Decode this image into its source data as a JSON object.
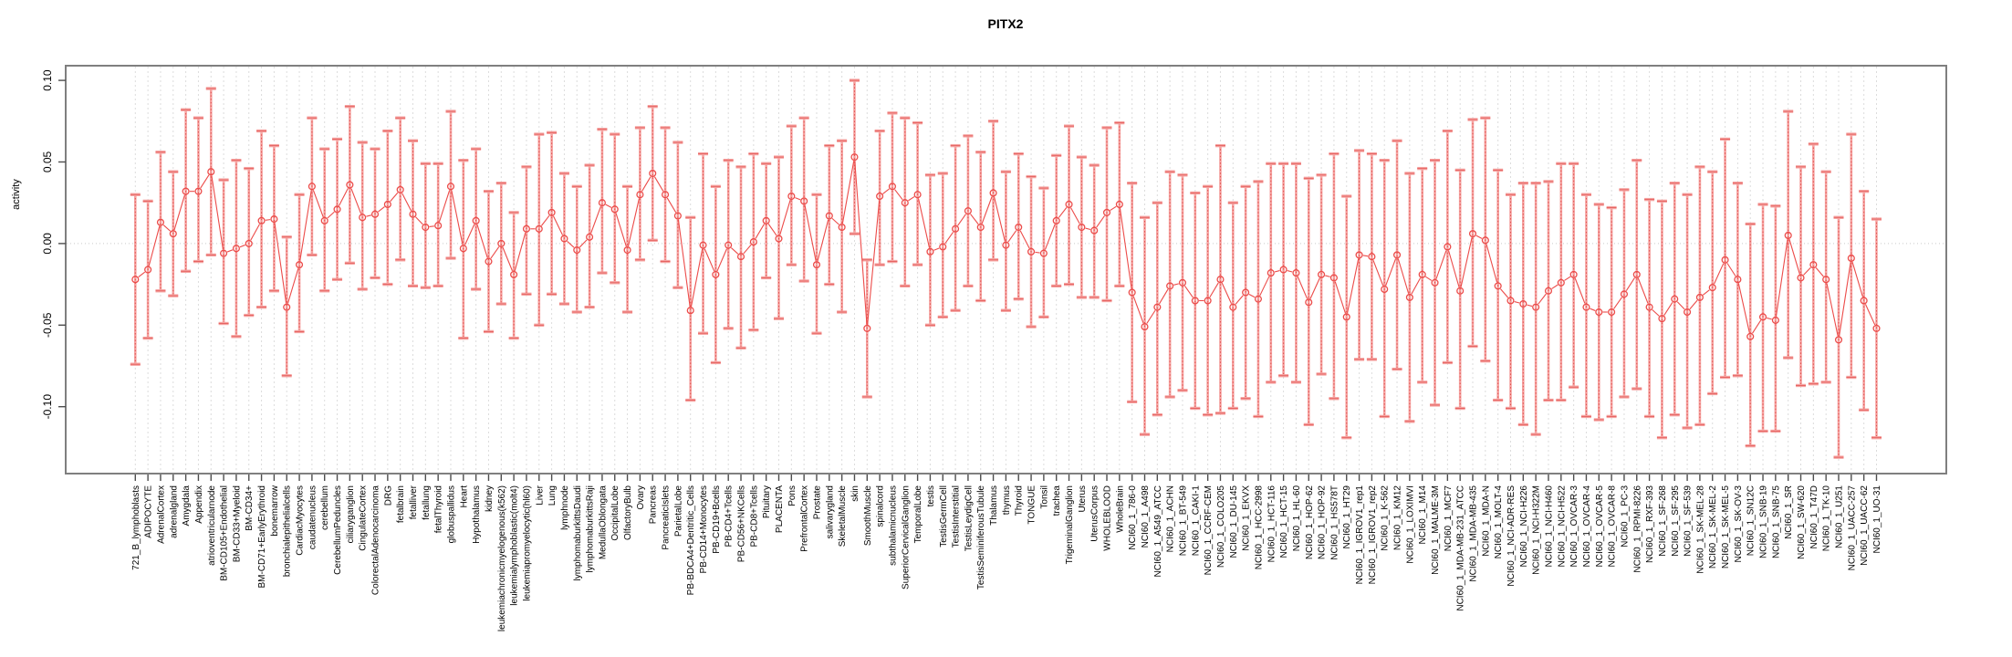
{
  "chart_data": {
    "type": "scatter",
    "subtype": "points-with-error-bars-and-connecting-line",
    "title": "PITX2",
    "xlabel": "",
    "ylabel": "activity",
    "ylim": [
      -0.141,
      0.109
    ],
    "ytick_values": [
      0.1,
      0.05,
      0.0,
      -0.05,
      -0.1
    ],
    "ytick_labels": [
      "0.10",
      "0.05",
      "0.00",
      "-0.05",
      "-0.10"
    ],
    "grid": "vertical dashed gridline per category; dotted horizontal line at 0",
    "legend_position": "none",
    "colors": {
      "point_line": "#EC4B49",
      "error_bar": "#F5A3A1",
      "error_bar_core": "#E2514F",
      "grid_line": "#DCDCDC",
      "zero_line": "#C9C9C9",
      "box": "#7F7F7F",
      "tick": "#4D4D4D"
    },
    "categories": [
      "721_B_lymphoblasts",
      "ADIPOCYTE",
      "AdrenalCortex",
      "adrenalgland",
      "Amygdala",
      "Appendix",
      "atrioventricularnode",
      "BM-CD105+Endothelial",
      "BM-CD33+Myeloid",
      "BM-CD34+",
      "BM-CD71+EarlyErythroid",
      "bonemarrow",
      "bronchialepithelialcells",
      "CardiacMyocytes",
      "caudatenucleus",
      "cerebellum",
      "CerebellumPeduncles",
      "ciliaryganglion",
      "CingulateCortex",
      "ColorectalAdenocarcinoma",
      "DRG",
      "fetalbrain",
      "fetalliver",
      "fetallung",
      "fetalThyroid",
      "globuspallidus",
      "Heart",
      "Hypothalamus",
      "kidney",
      "leukemiachronicmyelogenous(k562)",
      "leukemialymphoblastic(molt4)",
      "leukemiapromyelocytic(hl60)",
      "Liver",
      "Lung",
      "lymphnode",
      "lymphomaburkittsDaudi",
      "lymphomaburkittsRaji",
      "MedullaOblongata",
      "OccipitalLobe",
      "OlfactoryBulb",
      "Ovary",
      "Pancreas",
      "PancreaticIslets",
      "ParietalLobe",
      "PB-BDCA4+Dentritic_Cells",
      "PB-CD14+Monocytes",
      "PB-CD19+Bcells",
      "PB-CD4+Tcells",
      "PB-CD56+NKCells",
      "PB-CD8+Tcells",
      "Pituitary",
      "PLACENTA",
      "Pons",
      "PrefrontalCortex",
      "Prostate",
      "salivarygland",
      "SkeletalMuscle",
      "skin",
      "SmoothMuscle",
      "spinalcord",
      "subthalamicnucleus",
      "SuperiorCervicalGanglion",
      "TemporalLobe",
      "testis",
      "TestisGermCell",
      "TestisInterstitial",
      "TestisLeydigCell",
      "TestisSeminiferousTubule",
      "Thalamus",
      "thymus",
      "Thyroid",
      "TONGUE",
      "Tonsil",
      "trachea",
      "TrigeminalGanglion",
      "Uterus",
      "UterusCorpus",
      "WHOLEBLOOD",
      "WholeBrain",
      "NCI60_1_786-0",
      "NCI60_1_A498",
      "NCI60_1_A549_ATCC",
      "NCI60_1_ACHN",
      "NCI60_1_BT-549",
      "NCI60_1_CAKI-1",
      "NCI60_1_CCRF-CEM",
      "NCI60_1_COLO205",
      "NCI60_1_DU-145",
      "NCI60_1_EKVX",
      "NCI60_1_HCC-2998",
      "NCI60_1_HCT-116",
      "NCI60_1_HCT-15",
      "NCI60_1_HL-60",
      "NCI60_1_HOP-62",
      "NCI60_1_HOP-92",
      "NCI60_1_HS578T",
      "NCI60_1_HT29",
      "NCI60_1_IGROV1_rep1",
      "NCI60_1_IGROV1_rep2",
      "NCI60_1_K-562",
      "NCI60_1_KM12",
      "NCI60_1_LOXIMVI",
      "NCI60_1_M14",
      "NCI60_1_MALME-3M",
      "NCI60_1_MCF7",
      "NCI60_1_MDA-MB-231_ATCC",
      "NCI60_1_MDA-MB-435",
      "NCI60_1_MDA-N",
      "NCI60_1_MOLT-4",
      "NCI60_1_NCI-ADR-RES",
      "NCI60_1_NCI-H226",
      "NCI60_1_NCI-H322M",
      "NCI60_1_NCI-H460",
      "NCI60_1_NCI-H522",
      "NCI60_1_OVCAR-3",
      "NCI60_1_OVCAR-4",
      "NCI60_1_OVCAR-5",
      "NCI60_1_OVCAR-8",
      "NCI60_1_PC-3",
      "NCI60_1_RPMI-8226",
      "NCI60_1_RXF-393",
      "NCI60_1_SF-268",
      "NCI60_1_SF-295",
      "NCI60_1_SF-539",
      "NCI60_1_SK-MEL-28",
      "NCI60_1_SK-MEL-2",
      "NCI60_1_SK-MEL-5",
      "NCI60_1_SK-OV-3",
      "NCI60_1_SN12C",
      "NCI60_1_SNB-19",
      "NCI60_1_SNB-75",
      "NCI60_1_SR",
      "NCI60_1_SW-620",
      "NCI60_1_T47D",
      "NCI60_1_TK-10",
      "NCI60_1_U251",
      "NCI60_1_UACC-257",
      "NCI60_1_UACC-62",
      "NCI60_1_UO-31"
    ],
    "series": [
      {
        "name": "activity",
        "mid": [
          -0.022,
          -0.016,
          0.013,
          0.006,
          0.032,
          0.032,
          0.044,
          -0.006,
          -0.003,
          0.0,
          0.014,
          0.015,
          -0.039,
          -0.013,
          0.035,
          0.014,
          0.021,
          0.036,
          0.016,
          0.018,
          0.024,
          0.033,
          0.018,
          0.01,
          0.011,
          0.035,
          -0.003,
          0.014,
          -0.011,
          0.0,
          -0.019,
          0.009,
          0.009,
          0.019,
          0.003,
          -0.004,
          0.004,
          0.025,
          0.021,
          -0.004,
          0.03,
          0.043,
          0.03,
          0.017,
          -0.041,
          -0.001,
          -0.019,
          -0.001,
          -0.008,
          0.001,
          0.014,
          0.003,
          0.029,
          0.026,
          -0.013,
          0.017,
          0.01,
          0.053,
          -0.052,
          0.029,
          0.035,
          0.025,
          0.03,
          -0.005,
          -0.002,
          0.009,
          0.02,
          0.01,
          0.031,
          -0.001,
          0.01,
          -0.005,
          -0.006,
          0.014,
          0.024,
          0.01,
          0.008,
          0.019,
          0.024,
          -0.03,
          -0.051,
          -0.039,
          -0.026,
          -0.024,
          -0.035,
          -0.035,
          -0.022,
          -0.039,
          -0.03,
          -0.034,
          -0.018,
          -0.016,
          -0.018,
          -0.036,
          -0.019,
          -0.021,
          -0.045,
          -0.007,
          -0.008,
          -0.028,
          -0.007,
          -0.033,
          -0.019,
          -0.024,
          -0.002,
          -0.029,
          0.006,
          0.002,
          -0.026,
          -0.035,
          -0.037,
          -0.039,
          -0.029,
          -0.024,
          -0.019,
          -0.039,
          -0.042,
          -0.042,
          -0.031,
          -0.019,
          -0.039,
          -0.046,
          -0.034,
          -0.042,
          -0.033,
          -0.027,
          -0.01,
          -0.022,
          -0.057,
          -0.045,
          -0.047,
          0.005,
          -0.021,
          -0.013,
          -0.022,
          -0.059,
          -0.009,
          -0.035,
          -0.052
        ],
        "upper": [
          0.03,
          0.026,
          0.056,
          0.044,
          0.082,
          0.077,
          0.095,
          0.039,
          0.051,
          0.046,
          0.069,
          0.06,
          0.004,
          0.03,
          0.077,
          0.058,
          0.064,
          0.084,
          0.062,
          0.058,
          0.069,
          0.077,
          0.063,
          0.049,
          0.049,
          0.081,
          0.051,
          0.058,
          0.032,
          0.037,
          0.019,
          0.047,
          0.067,
          0.068,
          0.043,
          0.035,
          0.048,
          0.07,
          0.067,
          0.035,
          0.071,
          0.084,
          0.071,
          0.062,
          0.016,
          0.055,
          0.035,
          0.051,
          0.047,
          0.055,
          0.049,
          0.053,
          0.072,
          0.077,
          0.03,
          0.06,
          0.063,
          0.1,
          -0.01,
          0.069,
          0.08,
          0.077,
          0.074,
          0.042,
          0.043,
          0.06,
          0.066,
          0.056,
          0.075,
          0.044,
          0.055,
          0.041,
          0.034,
          0.054,
          0.072,
          0.053,
          0.048,
          0.071,
          0.074,
          0.037,
          0.016,
          0.025,
          0.044,
          0.042,
          0.031,
          0.035,
          0.06,
          0.025,
          0.035,
          0.038,
          0.049,
          0.049,
          0.049,
          0.04,
          0.042,
          0.055,
          0.029,
          0.057,
          0.055,
          0.051,
          0.063,
          0.043,
          0.046,
          0.051,
          0.069,
          0.045,
          0.076,
          0.077,
          0.045,
          0.03,
          0.037,
          0.037,
          0.038,
          0.049,
          0.049,
          0.03,
          0.024,
          0.022,
          0.033,
          0.051,
          0.027,
          0.026,
          0.037,
          0.03,
          0.047,
          0.044,
          0.064,
          0.037,
          0.012,
          0.024,
          0.023,
          0.081,
          0.047,
          0.061,
          0.044,
          0.016,
          0.067,
          0.032,
          0.015
        ],
        "lower": [
          -0.074,
          -0.058,
          -0.029,
          -0.032,
          -0.017,
          -0.011,
          -0.007,
          -0.049,
          -0.057,
          -0.044,
          -0.039,
          -0.029,
          -0.081,
          -0.054,
          -0.007,
          -0.029,
          -0.022,
          -0.012,
          -0.028,
          -0.021,
          -0.025,
          -0.01,
          -0.026,
          -0.027,
          -0.026,
          -0.009,
          -0.058,
          -0.028,
          -0.054,
          -0.037,
          -0.058,
          -0.031,
          -0.05,
          -0.031,
          -0.037,
          -0.042,
          -0.039,
          -0.018,
          -0.024,
          -0.042,
          -0.01,
          0.002,
          -0.011,
          -0.027,
          -0.096,
          -0.055,
          -0.073,
          -0.052,
          -0.064,
          -0.053,
          -0.021,
          -0.046,
          -0.013,
          -0.023,
          -0.055,
          -0.025,
          -0.042,
          0.006,
          -0.094,
          -0.013,
          -0.011,
          -0.026,
          -0.013,
          -0.05,
          -0.045,
          -0.041,
          -0.026,
          -0.035,
          -0.01,
          -0.041,
          -0.034,
          -0.051,
          -0.045,
          -0.026,
          -0.025,
          -0.033,
          -0.033,
          -0.035,
          -0.026,
          -0.097,
          -0.117,
          -0.105,
          -0.094,
          -0.09,
          -0.101,
          -0.105,
          -0.104,
          -0.101,
          -0.095,
          -0.106,
          -0.085,
          -0.081,
          -0.085,
          -0.111,
          -0.08,
          -0.095,
          -0.119,
          -0.071,
          -0.071,
          -0.106,
          -0.077,
          -0.109,
          -0.085,
          -0.099,
          -0.073,
          -0.101,
          -0.063,
          -0.072,
          -0.096,
          -0.101,
          -0.111,
          -0.117,
          -0.096,
          -0.096,
          -0.088,
          -0.106,
          -0.108,
          -0.106,
          -0.094,
          -0.089,
          -0.106,
          -0.119,
          -0.105,
          -0.113,
          -0.111,
          -0.092,
          -0.082,
          -0.081,
          -0.124,
          -0.115,
          -0.115,
          -0.07,
          -0.087,
          -0.086,
          -0.085,
          -0.131,
          -0.082,
          -0.102,
          -0.119
        ]
      }
    ]
  }
}
